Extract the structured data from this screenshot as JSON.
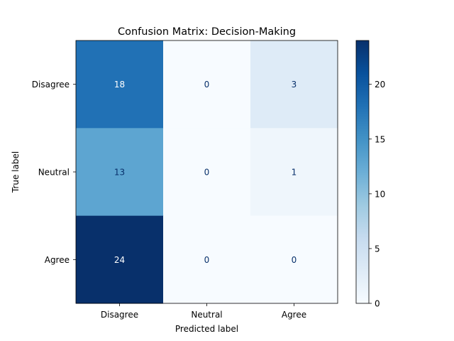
{
  "chart_data": {
    "type": "heatmap",
    "title": "Confusion Matrix: Decision-Making",
    "xlabel": "Predicted label",
    "ylabel": "True label",
    "x_categories": [
      "Disagree",
      "Neutral",
      "Agree"
    ],
    "y_categories": [
      "Disagree",
      "Neutral",
      "Agree"
    ],
    "values": [
      [
        18,
        0,
        3
      ],
      [
        13,
        0,
        1
      ],
      [
        24,
        0,
        0
      ]
    ],
    "colormap": "Blues",
    "colorbar": {
      "range": [
        0,
        24
      ],
      "ticks": [
        0,
        5,
        10,
        15,
        20
      ]
    },
    "grid": false
  }
}
